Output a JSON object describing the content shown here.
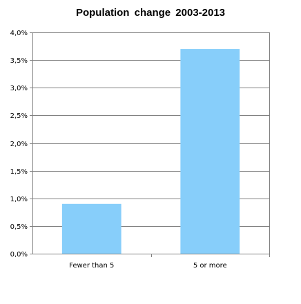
{
  "chart_data": {
    "type": "bar",
    "title": "Population  change  2003-2013",
    "xlabel": "",
    "ylabel": "",
    "categories": [
      "Fewer than 5",
      "5 or more"
    ],
    "values": [
      0.9,
      3.7
    ],
    "ylim": [
      0,
      4.0
    ],
    "yticks": [
      0,
      0.5,
      1.0,
      1.5,
      2.0,
      2.5,
      3.0,
      3.5,
      4.0
    ],
    "ytick_labels": [
      "0,0%",
      "0,5%",
      "1,0%",
      "1,5%",
      "2,0%",
      "2,5%",
      "3,0%",
      "3,5%",
      "4,0%"
    ],
    "grid": true,
    "legend": "none",
    "bar_color": "#87CEFA",
    "grid_color": "#808080",
    "axis_color": "#808080"
  }
}
